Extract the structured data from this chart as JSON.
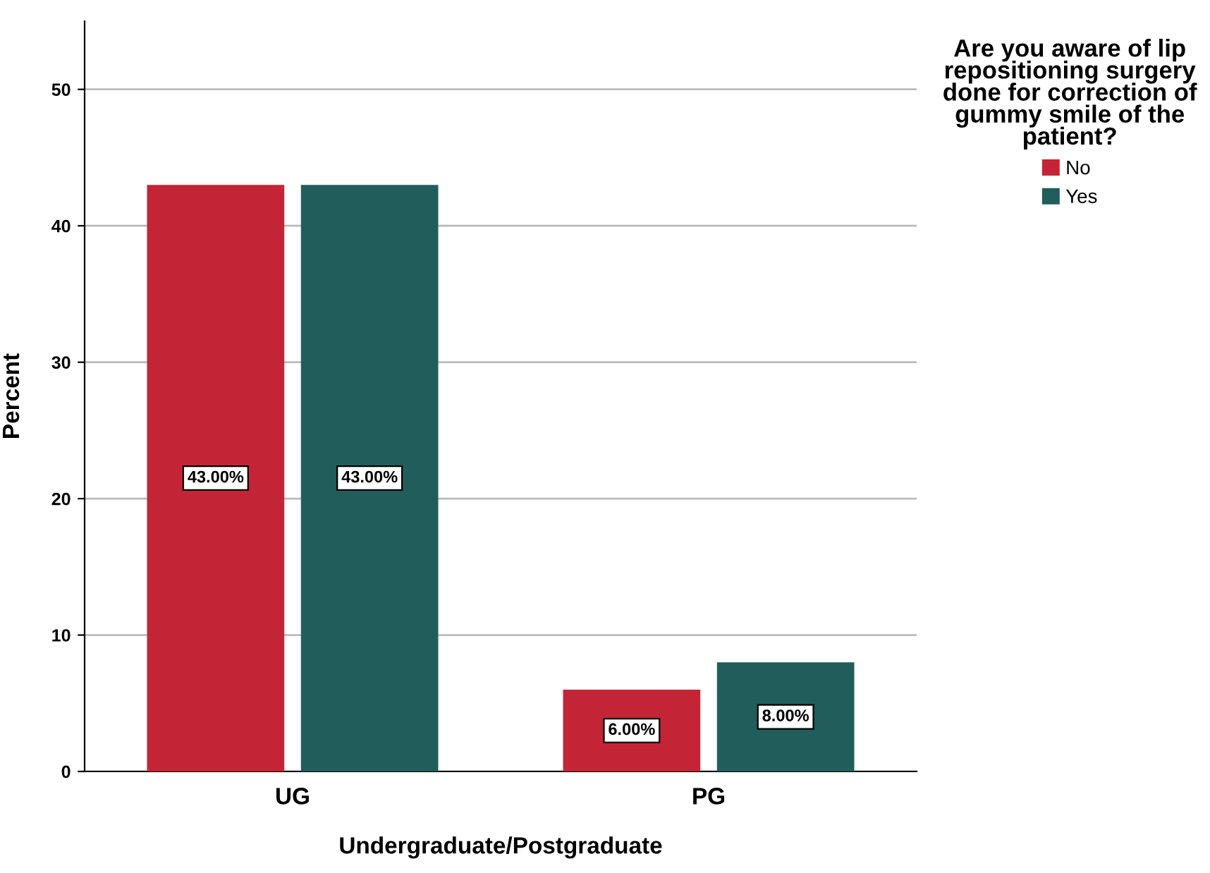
{
  "chart_data": {
    "type": "bar",
    "xlabel": "Undergraduate/Postgraduate",
    "ylabel": "Percent",
    "legend_title": "Are you aware of lip repositioning surgery done for correction of gummy smile of the patient?",
    "categories": [
      "UG",
      "PG"
    ],
    "series": [
      {
        "name": "No",
        "color": "#c42536",
        "values": [
          43,
          6
        ],
        "value_labels": [
          "43.00%",
          "6.00%"
        ]
      },
      {
        "name": "Yes",
        "color": "#215d5b",
        "values": [
          43,
          8
        ],
        "value_labels": [
          "43.00%",
          "8.00%"
        ]
      }
    ],
    "ylim": [
      0,
      55
    ],
    "yticks": [
      0,
      10,
      20,
      30,
      40,
      50
    ],
    "grid": "y",
    "legend": "top right"
  }
}
